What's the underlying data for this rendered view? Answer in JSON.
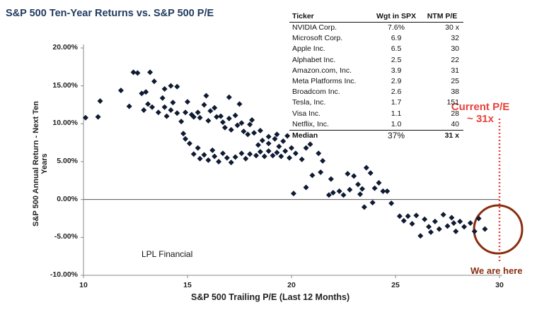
{
  "chart_data": {
    "type": "scatter",
    "title": "S&P 500 Ten-Year Returns vs. S&P 500 P/E",
    "xlabel": "S&P 500 Trailing P/E (Last 12 Months)",
    "ylabel": "S&P 500 Annual Return - Next Ten Years",
    "xlim": [
      10,
      30
    ],
    "ylim": [
      -10,
      20
    ],
    "x_ticks": [
      "10",
      "15",
      "20",
      "25",
      "30"
    ],
    "y_ticks": [
      "20.00%",
      "15.00%",
      "10.00%",
      "5.00%",
      "0.00%",
      "-5.00%",
      "-10.00%"
    ],
    "reference_line": {
      "x": 30.0,
      "style": "dotted",
      "color": "#e8423a"
    },
    "marker_color": "#0f1b33",
    "points": [
      [
        10.1,
        10.8
      ],
      [
        10.7,
        10.9
      ],
      [
        10.8,
        13.0
      ],
      [
        11.8,
        14.4
      ],
      [
        12.2,
        12.3
      ],
      [
        12.4,
        16.8
      ],
      [
        12.6,
        16.7
      ],
      [
        12.8,
        14.0
      ],
      [
        12.9,
        11.8
      ],
      [
        13.0,
        14.2
      ],
      [
        13.1,
        12.6
      ],
      [
        13.3,
        12.2
      ],
      [
        13.2,
        16.8
      ],
      [
        13.4,
        15.6
      ],
      [
        13.6,
        11.5
      ],
      [
        13.8,
        13.4
      ],
      [
        13.9,
        14.6
      ],
      [
        13.9,
        12.2
      ],
      [
        14.0,
        11.0
      ],
      [
        14.2,
        11.8
      ],
      [
        14.3,
        12.8
      ],
      [
        14.2,
        15.0
      ],
      [
        14.5,
        14.9
      ],
      [
        14.5,
        11.4
      ],
      [
        14.7,
        10.3
      ],
      [
        14.9,
        11.5
      ],
      [
        15.0,
        12.9
      ],
      [
        15.2,
        11.2
      ],
      [
        15.3,
        10.9
      ],
      [
        15.5,
        11.5
      ],
      [
        15.6,
        10.8
      ],
      [
        15.8,
        12.5
      ],
      [
        15.9,
        13.7
      ],
      [
        16.0,
        10.4
      ],
      [
        16.1,
        11.7
      ],
      [
        16.3,
        12.1
      ],
      [
        16.4,
        10.9
      ],
      [
        16.6,
        11.0
      ],
      [
        16.7,
        10.2
      ],
      [
        16.8,
        9.5
      ],
      [
        17.0,
        10.7
      ],
      [
        17.1,
        9.2
      ],
      [
        17.3,
        11.1
      ],
      [
        17.4,
        9.8
      ],
      [
        17.6,
        10.1
      ],
      [
        17.7,
        9.0
      ],
      [
        17.9,
        8.6
      ],
      [
        18.0,
        9.9
      ],
      [
        18.1,
        10.5
      ],
      [
        17.0,
        13.5
      ],
      [
        17.5,
        12.6
      ],
      [
        18.2,
        8.8
      ],
      [
        14.8,
        8.7
      ],
      [
        14.9,
        8.0
      ],
      [
        15.1,
        7.4
      ],
      [
        15.3,
        6.0
      ],
      [
        15.5,
        6.8
      ],
      [
        15.6,
        5.4
      ],
      [
        15.8,
        5.9
      ],
      [
        16.0,
        5.2
      ],
      [
        16.2,
        6.5
      ],
      [
        16.3,
        5.7
      ],
      [
        16.5,
        5.0
      ],
      [
        16.7,
        6.1
      ],
      [
        16.9,
        5.5
      ],
      [
        17.1,
        4.9
      ],
      [
        17.3,
        5.6
      ],
      [
        17.6,
        6.1
      ],
      [
        17.8,
        5.4
      ],
      [
        18.0,
        6.0
      ],
      [
        18.3,
        5.8
      ],
      [
        18.5,
        6.3
      ],
      [
        18.7,
        5.7
      ],
      [
        18.9,
        6.4
      ],
      [
        19.1,
        5.8
      ],
      [
        19.3,
        6.2
      ],
      [
        19.5,
        5.7
      ],
      [
        19.7,
        6.4
      ],
      [
        19.9,
        5.5
      ],
      [
        18.4,
        7.2
      ],
      [
        18.6,
        7.8
      ],
      [
        18.9,
        7.4
      ],
      [
        19.2,
        8.0
      ],
      [
        19.4,
        7.0
      ],
      [
        19.6,
        7.7
      ],
      [
        18.5,
        9.1
      ],
      [
        18.9,
        8.3
      ],
      [
        19.3,
        8.6
      ],
      [
        19.8,
        8.4
      ],
      [
        20.0,
        6.8
      ],
      [
        20.2,
        6.1
      ],
      [
        20.5,
        5.3
      ],
      [
        20.7,
        6.8
      ],
      [
        20.9,
        7.3
      ],
      [
        21.3,
        6.1
      ],
      [
        21.5,
        5.1
      ],
      [
        21.9,
        2.7
      ],
      [
        20.1,
        0.8
      ],
      [
        20.7,
        1.6
      ],
      [
        21.0,
        3.2
      ],
      [
        21.4,
        3.6
      ],
      [
        21.8,
        0.6
      ],
      [
        22.0,
        0.9
      ],
      [
        22.3,
        1.1
      ],
      [
        22.5,
        0.6
      ],
      [
        22.8,
        1.3
      ],
      [
        23.0,
        3.1
      ],
      [
        23.2,
        2.0
      ],
      [
        23.4,
        1.4
      ],
      [
        23.6,
        4.2
      ],
      [
        23.8,
        3.5
      ],
      [
        24.0,
        1.5
      ],
      [
        24.2,
        2.2
      ],
      [
        24.4,
        1.1
      ],
      [
        24.6,
        1.1
      ],
      [
        22.7,
        3.4
      ],
      [
        23.3,
        0.7
      ],
      [
        23.9,
        -0.4
      ],
      [
        23.5,
        -1.0
      ],
      [
        24.8,
        -0.5
      ],
      [
        25.2,
        -2.2
      ],
      [
        25.4,
        -2.8
      ],
      [
        25.6,
        -2.2
      ],
      [
        25.8,
        -3.2
      ],
      [
        26.0,
        -2.1
      ],
      [
        26.2,
        -4.8
      ],
      [
        26.4,
        -2.6
      ],
      [
        26.6,
        -3.6
      ],
      [
        26.9,
        -2.9
      ],
      [
        27.1,
        -3.9
      ],
      [
        27.3,
        -2.0
      ],
      [
        27.5,
        -3.5
      ],
      [
        27.7,
        -2.4
      ],
      [
        27.9,
        -4.2
      ],
      [
        28.1,
        -2.9
      ],
      [
        28.3,
        -3.6
      ],
      [
        28.6,
        -3.1
      ],
      [
        28.8,
        -4.2
      ],
      [
        29.0,
        -2.5
      ],
      [
        29.3,
        -3.9
      ],
      [
        26.7,
        -4.3
      ],
      [
        27.8,
        -3.1
      ]
    ]
  },
  "table": {
    "headers": [
      "Ticker",
      "Wgt in SPX",
      "NTM P/E"
    ],
    "rows": [
      [
        "NVIDIA Corp.",
        "7.6%",
        "30 x"
      ],
      [
        "Microsoft Corp.",
        "6.9",
        "32"
      ],
      [
        "Apple Inc.",
        "6.5",
        "30"
      ],
      [
        "Alphabet Inc.",
        "2.5",
        "22"
      ],
      [
        "Amazon.com, Inc.",
        "3.9",
        "31"
      ],
      [
        "Meta Platforms Inc.",
        "2.9",
        "25"
      ],
      [
        "Broadcom Inc.",
        "2.6",
        "38"
      ],
      [
        "Tesla, Inc.",
        "1.7",
        "151"
      ],
      [
        "Visa Inc.",
        "1.1",
        "28"
      ],
      [
        "Netflix, Inc.",
        "1.0",
        "40"
      ]
    ],
    "median": [
      "Median",
      "37%",
      "31 x"
    ]
  },
  "annotations": {
    "source": "LPL Financial",
    "current_pe_line1": "Current P/E",
    "current_pe_line2": "~ 31x",
    "we_are_here": "We are here"
  }
}
